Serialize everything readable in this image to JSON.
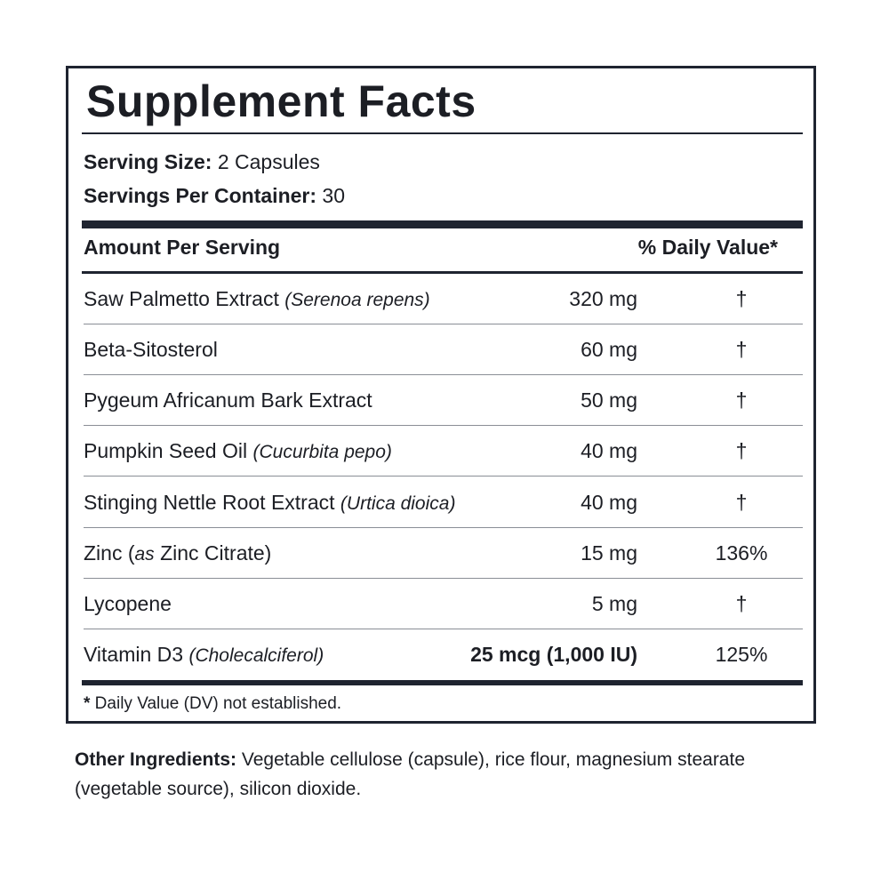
{
  "panel": {
    "title": "Supplement Facts",
    "serving_size_label": "Serving Size:",
    "serving_size_value": "2 Capsules",
    "servings_per_container_label": "Servings Per Container:",
    "servings_per_container_value": "30",
    "header_left": "Amount Per Serving",
    "header_right": "% Daily Value*",
    "rows": [
      {
        "name": "Saw Palmetto Extract",
        "latin": "(Serenoa repens)",
        "amount": "320 mg",
        "dv": "†"
      },
      {
        "name": "Beta-Sitosterol",
        "latin": "",
        "amount": "60 mg",
        "dv": "†"
      },
      {
        "name": "Pygeum Africanum Bark Extract",
        "latin": "",
        "amount": "50 mg",
        "dv": "†"
      },
      {
        "name": "Pumpkin Seed Oil",
        "latin": "(Cucurbita pepo)",
        "amount": "40 mg",
        "dv": "†"
      },
      {
        "name": "Stinging Nettle Root Extract",
        "latin": "(Urtica dioica)",
        "amount": "40 mg",
        "dv": "†"
      },
      {
        "name_pre": "Zinc (",
        "name_italic": "as",
        "name_post": " Zinc Citrate)",
        "amount": "15 mg",
        "dv": "136%"
      },
      {
        "name": "Lycopene",
        "latin": "",
        "amount": "5 mg",
        "dv": "†"
      },
      {
        "name": "Vitamin D3",
        "latin": "(Cholecalciferol)",
        "amount": "25 mcg (1,000 IU)",
        "dv": "125%"
      }
    ],
    "footnote_star": "*",
    "footnote_text": " Daily Value (DV) not established."
  },
  "other_ingredients": {
    "label": "Other Ingredients:",
    "text": " Vegetable cellulose (capsule), rice flour, magnesium stearate (vegetable source), silicon dioxide."
  }
}
